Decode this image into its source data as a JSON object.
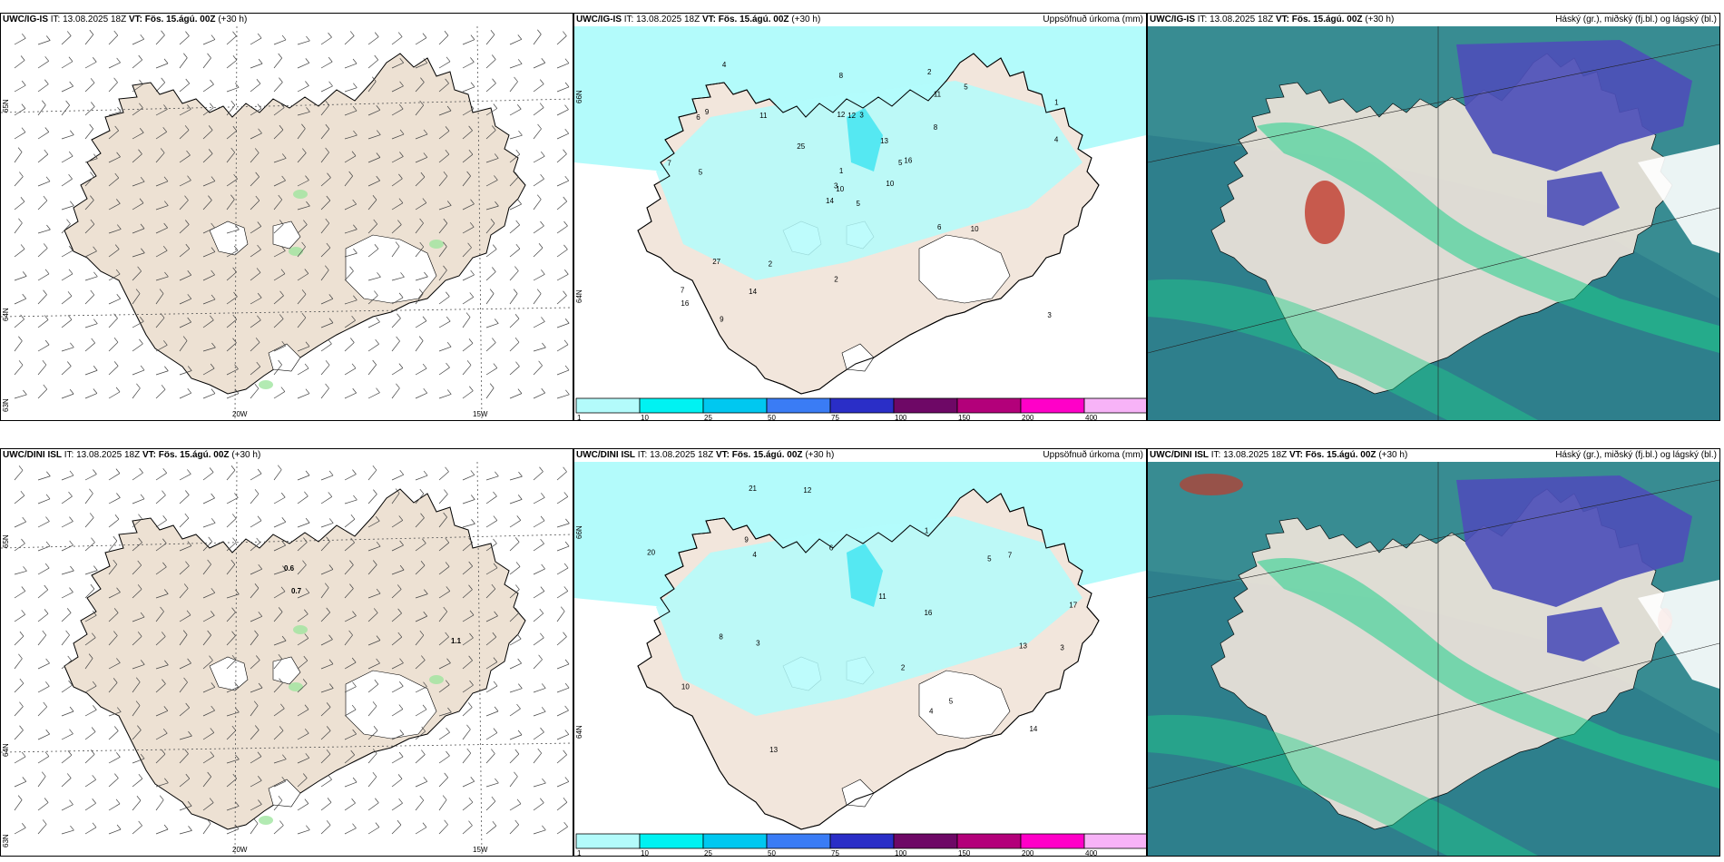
{
  "panels": [
    {
      "id": "p1",
      "title_model": "UWC/IG-IS",
      "title_it": " IT: 13.08.2025 18Z ",
      "title_vt_label": "VT:",
      "title_vt": " Fös. 15.ágú. 00Z",
      "title_lead": " (+30 h)",
      "title_right": "",
      "kind": "wind"
    },
    {
      "id": "p2",
      "title_model": "UWC/IG-IS",
      "title_it": " IT: 13.08.2025 18Z ",
      "title_vt_label": "VT:",
      "title_vt": " Fös. 15.ágú. 00Z",
      "title_lead": " (+30 h)",
      "title_right": "Uppsöfnuð úrkoma (mm)",
      "kind": "precip"
    },
    {
      "id": "p3",
      "title_model": "UWC/IG-IS",
      "title_it": " IT: 13.08.2025 18Z ",
      "title_vt_label": "VT:",
      "title_vt": " Fös. 15.ágú. 00Z",
      "title_lead": " (+30 h)",
      "title_right": "Háský (gr.), miðský (fj.bl.) og lágský (bl.)",
      "kind": "cloud"
    },
    {
      "id": "p4",
      "title_model": "UWC/DINI ISL",
      "title_it": " IT: 13.08.2025 18Z ",
      "title_vt_label": "VT:",
      "title_vt": " Fös. 15.ágú. 00Z",
      "title_lead": " (+30 h)",
      "title_right": "",
      "kind": "wind"
    },
    {
      "id": "p5",
      "title_model": "UWC/DINI ISL",
      "title_it": " IT: 13.08.2025 18Z ",
      "title_vt_label": "VT:",
      "title_vt": " Fös. 15.ágú. 00Z",
      "title_lead": " (+30 h)",
      "title_right": "Uppsöfnuð úrkoma (mm)",
      "kind": "precip"
    },
    {
      "id": "p6",
      "title_model": "UWC/DINI ISL",
      "title_it": " IT: 13.08.2025 18Z ",
      "title_vt_label": "VT:",
      "title_vt": " Fös. 15.ágú. 00Z",
      "title_lead": " (+30 h)",
      "title_right": "Háský (gr.), miðský (fj.bl.) og lágský (bl.)",
      "kind": "cloud"
    }
  ],
  "axes": {
    "lon_labels": [
      "20W",
      "15W"
    ],
    "lat_labels": [
      "65N",
      "64N",
      "63N"
    ],
    "lat_labels_precip": [
      "66N",
      "64N"
    ]
  },
  "precip_colorbar": {
    "ticks": [
      "1",
      "10",
      "25",
      "50",
      "75",
      "100",
      "150",
      "200",
      "400"
    ],
    "colors": [
      "#b3fbfb",
      "#00f2f2",
      "#00c8f0",
      "#3a7cf5",
      "#2a2ec7",
      "#6e0866",
      "#b3007a",
      "#ff00c8",
      "#f7b3f7"
    ]
  },
  "wind_values_p4": [
    "0.6",
    "0.7",
    "1.1"
  ],
  "precip_numbers_p2": [
    "5",
    "6",
    "10",
    "7",
    "5",
    "2",
    "2",
    "3",
    "11",
    "10",
    "4",
    "3",
    "5",
    "1",
    "14",
    "8",
    "9",
    "12",
    "13",
    "27",
    "25",
    "16",
    "14",
    "12",
    "16",
    "10",
    "9",
    "8",
    "7",
    "6",
    "4",
    "3",
    "2",
    "1",
    "11",
    "5"
  ],
  "precip_numbers_p5": [
    "3",
    "4",
    "5",
    "6",
    "9",
    "13",
    "11",
    "14",
    "17",
    "16",
    "20",
    "21",
    "10",
    "13",
    "12",
    "8",
    "7",
    "5",
    "4",
    "3",
    "2",
    "1"
  ],
  "colors": {
    "land": "#f2e6dc",
    "land_wind": "#ede1d3",
    "sea": "#ffffff",
    "precip_light": "#b3fbfb",
    "precip_mid": "#55e8f2",
    "cloud_low": "#2e7f8c",
    "cloud_mid": "#4d4fb8",
    "cloud_high": "#1fd08a"
  }
}
